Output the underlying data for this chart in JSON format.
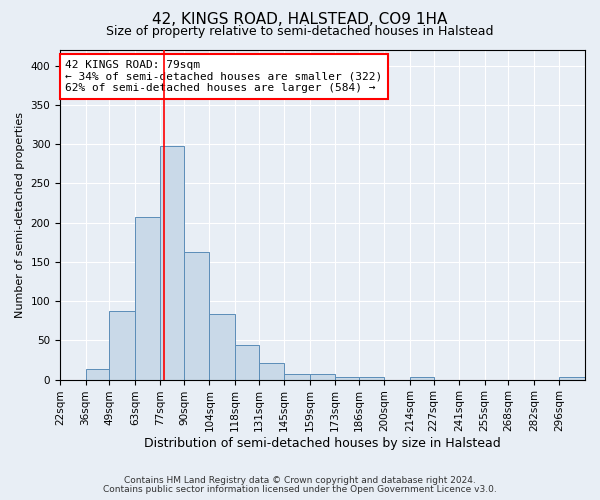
{
  "title": "42, KINGS ROAD, HALSTEAD, CO9 1HA",
  "subtitle": "Size of property relative to semi-detached houses in Halstead",
  "xlabel": "Distribution of semi-detached houses by size in Halstead",
  "ylabel": "Number of semi-detached properties",
  "bin_edges": [
    22,
    36,
    49,
    63,
    77,
    90,
    104,
    118,
    131,
    145,
    159,
    173,
    186,
    200,
    214,
    227,
    241,
    255,
    268,
    282,
    296,
    310
  ],
  "bin_labels": [
    "22sqm",
    "36sqm",
    "49sqm",
    "63sqm",
    "77sqm",
    "90sqm",
    "104sqm",
    "118sqm",
    "131sqm",
    "145sqm",
    "159sqm",
    "173sqm",
    "186sqm",
    "200sqm",
    "214sqm",
    "227sqm",
    "241sqm",
    "255sqm",
    "268sqm",
    "282sqm",
    "296sqm"
  ],
  "bar_heights": [
    0,
    13,
    87,
    207,
    298,
    163,
    84,
    44,
    21,
    7,
    7,
    3,
    3,
    0,
    3,
    0,
    0,
    0,
    0,
    0,
    3
  ],
  "bar_color": "#c9d9e8",
  "bar_edge_color": "#5b8db8",
  "red_line_x": 79,
  "annotation_line1": "42 KINGS ROAD: 79sqm",
  "annotation_line2": "← 34% of semi-detached houses are smaller (322)",
  "annotation_line3": "62% of semi-detached houses are larger (584) →",
  "annotation_box_color": "white",
  "annotation_box_edge_color": "red",
  "ylim": [
    0,
    420
  ],
  "yticks": [
    0,
    50,
    100,
    150,
    200,
    250,
    300,
    350,
    400
  ],
  "footnote1": "Contains HM Land Registry data © Crown copyright and database right 2024.",
  "footnote2": "Contains public sector information licensed under the Open Government Licence v3.0.",
  "background_color": "#e8eef5",
  "plot_background_color": "#e8eef5",
  "title_fontsize": 11,
  "subtitle_fontsize": 9,
  "xlabel_fontsize": 9,
  "ylabel_fontsize": 8,
  "annotation_fontsize": 8,
  "tick_fontsize": 7.5
}
